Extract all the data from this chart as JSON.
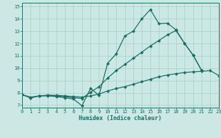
{
  "xlabel": "Humidex (Indice chaleur)",
  "xlim": [
    0,
    23
  ],
  "ylim": [
    6.8,
    15.3
  ],
  "xticks": [
    0,
    1,
    2,
    3,
    4,
    5,
    6,
    7,
    8,
    9,
    10,
    11,
    12,
    13,
    14,
    15,
    16,
    17,
    18,
    19,
    20,
    21,
    22,
    23
  ],
  "yticks": [
    7,
    8,
    9,
    10,
    11,
    12,
    13,
    14,
    15
  ],
  "bg_color": "#cce8e5",
  "grid_color": "#aaccca",
  "line_color": "#1a6e65",
  "line1_y": [
    7.85,
    7.6,
    7.75,
    7.75,
    7.7,
    7.6,
    7.5,
    6.95,
    8.35,
    7.8,
    10.4,
    11.15,
    12.6,
    13.0,
    14.0,
    14.75,
    13.6,
    13.65,
    13.1,
    12.0,
    11.05,
    9.8,
    null,
    null
  ],
  "line2_y": [
    7.85,
    7.6,
    7.75,
    7.8,
    7.75,
    7.7,
    7.6,
    7.55,
    8.05,
    8.5,
    9.2,
    9.8,
    10.3,
    10.8,
    11.3,
    11.8,
    12.25,
    12.7,
    13.05,
    12.0,
    11.05,
    9.8,
    null,
    null
  ],
  "line3_y": [
    7.85,
    7.65,
    7.75,
    7.8,
    7.8,
    7.75,
    7.7,
    7.65,
    7.75,
    7.9,
    8.15,
    8.35,
    8.5,
    8.7,
    8.9,
    9.1,
    9.3,
    9.45,
    9.55,
    9.65,
    9.7,
    9.75,
    9.8,
    9.4
  ]
}
